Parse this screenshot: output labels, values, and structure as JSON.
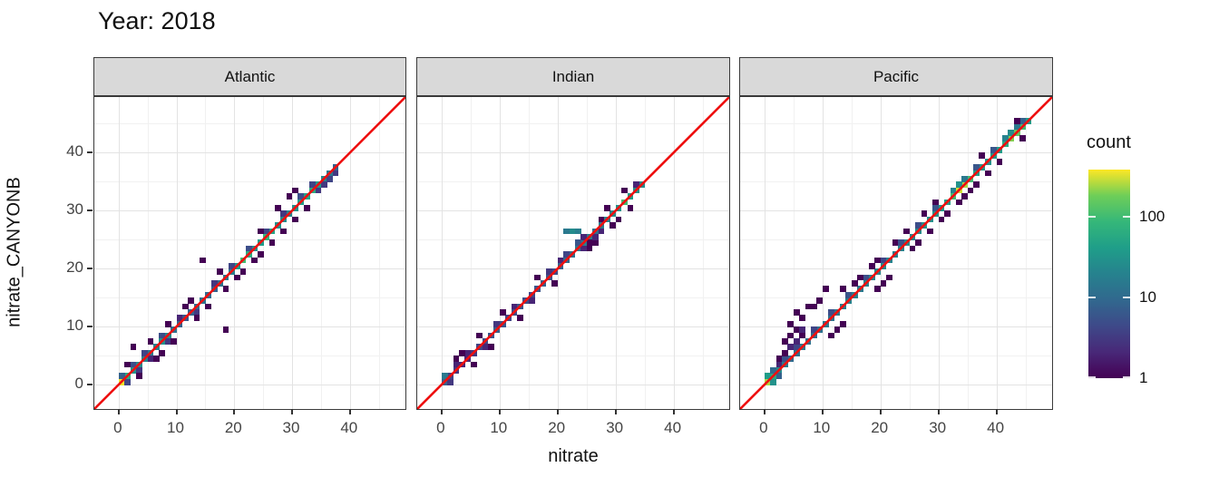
{
  "chart_data": {
    "type": "heatmap",
    "subtype": "bin2d-faceted",
    "title": "Year: 2018",
    "xlabel": "nitrate",
    "ylabel": "nitrate_CANYONB",
    "xlim": [
      -4.2,
      49.6
    ],
    "ylim": [
      -4.2,
      49.6
    ],
    "x_ticks": [
      0,
      10,
      20,
      30,
      40
    ],
    "y_ticks": [
      0,
      10,
      20,
      30,
      40
    ],
    "minor_gridlines": [
      5,
      15,
      25,
      35,
      45
    ],
    "grid": true,
    "ref_line": "y = x identity line",
    "ref_line_color": "#ee0f0f",
    "legend": {
      "title": "count",
      "scale": "log10",
      "tick_values": [
        100,
        10,
        1
      ],
      "max": 380,
      "position": "right"
    },
    "facets": [
      {
        "name": "Atlantic",
        "diagonal_counts": [
          350,
          60,
          30,
          25,
          20,
          15,
          20,
          30,
          25,
          12,
          8,
          6,
          8,
          10,
          12,
          10,
          8,
          12,
          15,
          18,
          40,
          100,
          60,
          30,
          40,
          80,
          50,
          30,
          25,
          20,
          30,
          40,
          50,
          60,
          40,
          25,
          15,
          8
        ],
        "bins": [
          [
            1.5,
            0.5,
            4
          ],
          [
            0.5,
            1.5,
            8
          ],
          [
            2.5,
            3.5,
            5
          ],
          [
            3.5,
            2.5,
            3
          ],
          [
            4.5,
            5.5,
            4
          ],
          [
            5.5,
            4.5,
            2
          ],
          [
            7.5,
            8.5,
            5
          ],
          [
            8.5,
            7.5,
            3
          ],
          [
            10.5,
            11.5,
            2
          ],
          [
            13.5,
            12.5,
            3
          ],
          [
            16.5,
            17.5,
            3
          ],
          [
            19.5,
            20.5,
            4
          ],
          [
            22.5,
            23.5,
            5
          ],
          [
            25.5,
            26.5,
            4
          ],
          [
            28.5,
            29.5,
            3
          ],
          [
            31.5,
            32.5,
            5
          ],
          [
            33.5,
            34.5,
            4
          ],
          [
            34.5,
            33.5,
            3
          ],
          [
            35.5,
            34.5,
            3
          ],
          [
            36.5,
            35.5,
            4
          ],
          [
            37.5,
            36.5,
            3
          ],
          [
            2.5,
            6.5,
            1
          ],
          [
            1.5,
            3.5,
            1
          ],
          [
            3.5,
            1.5,
            1
          ],
          [
            5.5,
            7.5,
            1
          ],
          [
            6.5,
            4.5,
            1
          ],
          [
            8.5,
            10.5,
            1
          ],
          [
            9.5,
            7.5,
            1
          ],
          [
            11.5,
            13.5,
            1
          ],
          [
            12.5,
            14.5,
            1
          ],
          [
            14.5,
            21.5,
            1
          ],
          [
            18.5,
            9.5,
            1
          ],
          [
            15.5,
            13.5,
            1
          ],
          [
            17.5,
            19.5,
            1
          ],
          [
            18.5,
            16.5,
            1
          ],
          [
            20.5,
            18.5,
            1
          ],
          [
            21.5,
            19.5,
            1
          ],
          [
            23.5,
            21.5,
            1
          ],
          [
            24.5,
            26.5,
            1
          ],
          [
            26.5,
            24.5,
            1
          ],
          [
            27.5,
            30.5,
            1
          ],
          [
            28.5,
            26.5,
            1
          ],
          [
            29.5,
            32.5,
            1
          ],
          [
            30.5,
            33.5,
            1
          ],
          [
            30.5,
            28.5,
            1
          ],
          [
            32.5,
            30.5,
            1
          ],
          [
            24.5,
            22.5,
            1
          ],
          [
            13.5,
            11.5,
            1
          ],
          [
            7.5,
            5.5,
            1
          ]
        ]
      },
      {
        "name": "Indian",
        "diagonal_counts": [
          8,
          4,
          3,
          2,
          2,
          3,
          4,
          5,
          6,
          8,
          6,
          4,
          5,
          6,
          5,
          4,
          6,
          8,
          6,
          5,
          8,
          10,
          12,
          15,
          18,
          15,
          12,
          15,
          20,
          25,
          30,
          100,
          40,
          30,
          25
        ],
        "bins": [
          [
            21.5,
            26.5,
            15
          ],
          [
            22.5,
            26.5,
            25
          ],
          [
            23.5,
            26.5,
            18
          ],
          [
            24.5,
            25.5,
            2
          ],
          [
            25.5,
            24.5,
            1
          ],
          [
            25.5,
            23.5,
            1
          ],
          [
            26.5,
            24.5,
            1
          ],
          [
            24.5,
            23.5,
            2
          ],
          [
            23.5,
            24.5,
            6
          ],
          [
            26.5,
            25.5,
            2
          ],
          [
            0.5,
            1.5,
            15
          ],
          [
            1.5,
            0.5,
            3
          ],
          [
            2.5,
            3.5,
            2
          ],
          [
            4.5,
            5.5,
            2
          ],
          [
            7.5,
            6.5,
            2
          ],
          [
            9.5,
            10.5,
            3
          ],
          [
            12.5,
            13.5,
            2
          ],
          [
            15.5,
            14.5,
            2
          ],
          [
            18.5,
            19.5,
            3
          ],
          [
            21.5,
            22.5,
            4
          ],
          [
            2.5,
            4.5,
            1
          ],
          [
            3.5,
            5.5,
            1
          ],
          [
            5.5,
            3.5,
            1
          ],
          [
            6.5,
            8.5,
            1
          ],
          [
            8.5,
            6.5,
            1
          ],
          [
            10.5,
            12.5,
            1
          ],
          [
            13.5,
            11.5,
            1
          ],
          [
            16.5,
            18.5,
            1
          ],
          [
            19.5,
            17.5,
            1
          ],
          [
            27.5,
            28.5,
            1
          ],
          [
            28.5,
            30.5,
            1
          ],
          [
            29.5,
            27.5,
            1
          ],
          [
            30.5,
            28.5,
            1
          ],
          [
            32.5,
            30.5,
            1
          ],
          [
            33.5,
            34.5,
            2
          ],
          [
            31.5,
            33.5,
            1
          ],
          [
            20.5,
            21.5,
            2
          ],
          [
            27.5,
            26.5,
            2
          ]
        ]
      },
      {
        "name": "Pacific",
        "diagonal_counts": [
          250,
          60,
          25,
          15,
          10,
          12,
          15,
          12,
          10,
          12,
          15,
          12,
          15,
          18,
          20,
          18,
          15,
          18,
          20,
          22,
          25,
          20,
          18,
          20,
          25,
          22,
          25,
          30,
          28,
          30,
          35,
          40,
          100,
          300,
          250,
          100,
          40,
          35,
          30,
          35,
          40,
          60,
          200,
          150,
          100,
          40
        ],
        "bins": [
          [
            0.5,
            1.5,
            40
          ],
          [
            1.5,
            0.5,
            30
          ],
          [
            2.5,
            1.5,
            8
          ],
          [
            1.5,
            2.5,
            10
          ],
          [
            3.5,
            4.5,
            5
          ],
          [
            5.5,
            6.5,
            4
          ],
          [
            8.5,
            9.5,
            4
          ],
          [
            11.5,
            12.5,
            5
          ],
          [
            14.5,
            15.5,
            6
          ],
          [
            17.5,
            18.5,
            5
          ],
          [
            20.5,
            21.5,
            4
          ],
          [
            23.5,
            24.5,
            5
          ],
          [
            26.5,
            27.5,
            5
          ],
          [
            29.5,
            30.5,
            6
          ],
          [
            32.5,
            33.5,
            20
          ],
          [
            33.5,
            34.5,
            30
          ],
          [
            34.5,
            35.5,
            15
          ],
          [
            36.5,
            37.5,
            6
          ],
          [
            39.5,
            40.5,
            6
          ],
          [
            41.5,
            42.5,
            20
          ],
          [
            42.5,
            43.5,
            25
          ],
          [
            43.5,
            44.5,
            15
          ],
          [
            44.5,
            45.5,
            8
          ],
          [
            2.5,
            4.5,
            1
          ],
          [
            3.5,
            5.5,
            1
          ],
          [
            3.5,
            7.5,
            1
          ],
          [
            4.5,
            8.5,
            1
          ],
          [
            4.5,
            10.5,
            1
          ],
          [
            5.5,
            9.5,
            1
          ],
          [
            5.5,
            12.5,
            1
          ],
          [
            6.5,
            8.5,
            1
          ],
          [
            6.5,
            11.5,
            1
          ],
          [
            7.5,
            13.5,
            1
          ],
          [
            8.5,
            13.5,
            1
          ],
          [
            9.5,
            14.5,
            1
          ],
          [
            10.5,
            16.5,
            1
          ],
          [
            13.5,
            16.5,
            1
          ],
          [
            2.5,
            3.5,
            2
          ],
          [
            4.5,
            6.5,
            2
          ],
          [
            5.5,
            7.5,
            2
          ],
          [
            6.5,
            9.5,
            2
          ],
          [
            11.5,
            8.5,
            1
          ],
          [
            12.5,
            9.5,
            1
          ],
          [
            13.5,
            10.5,
            1
          ],
          [
            20.5,
            17.5,
            1
          ],
          [
            21.5,
            18.5,
            1
          ],
          [
            19.5,
            16.5,
            1
          ],
          [
            15.5,
            17.5,
            1
          ],
          [
            16.5,
            18.5,
            1
          ],
          [
            18.5,
            20.5,
            1
          ],
          [
            19.5,
            21.5,
            1
          ],
          [
            22.5,
            24.5,
            1
          ],
          [
            24.5,
            26.5,
            1
          ],
          [
            25.5,
            23.5,
            1
          ],
          [
            26.5,
            24.5,
            1
          ],
          [
            27.5,
            29.5,
            1
          ],
          [
            28.5,
            26.5,
            1
          ],
          [
            30.5,
            28.5,
            1
          ],
          [
            31.5,
            29.5,
            1
          ],
          [
            33.5,
            31.5,
            1
          ],
          [
            34.5,
            32.5,
            1
          ],
          [
            35.5,
            33.5,
            1
          ],
          [
            36.5,
            34.5,
            1
          ],
          [
            37.5,
            39.5,
            1
          ],
          [
            40.5,
            38.5,
            1
          ],
          [
            43.5,
            45.5,
            1
          ],
          [
            44.5,
            42.5,
            1
          ],
          [
            29.5,
            31.5,
            1
          ],
          [
            38.5,
            36.5,
            1
          ]
        ]
      }
    ]
  },
  "style": {
    "strip_bg": "#d9d9d9",
    "panel_border": "#3a3a3a",
    "grid_major": "#e3e3e3",
    "grid_minor": "#f1f1f1",
    "axis_text": "#444444",
    "viridis": [
      "#440154",
      "#482878",
      "#3e4989",
      "#31688e",
      "#26828e",
      "#1f9e89",
      "#35b779",
      "#6ece58",
      "#fde725"
    ]
  }
}
